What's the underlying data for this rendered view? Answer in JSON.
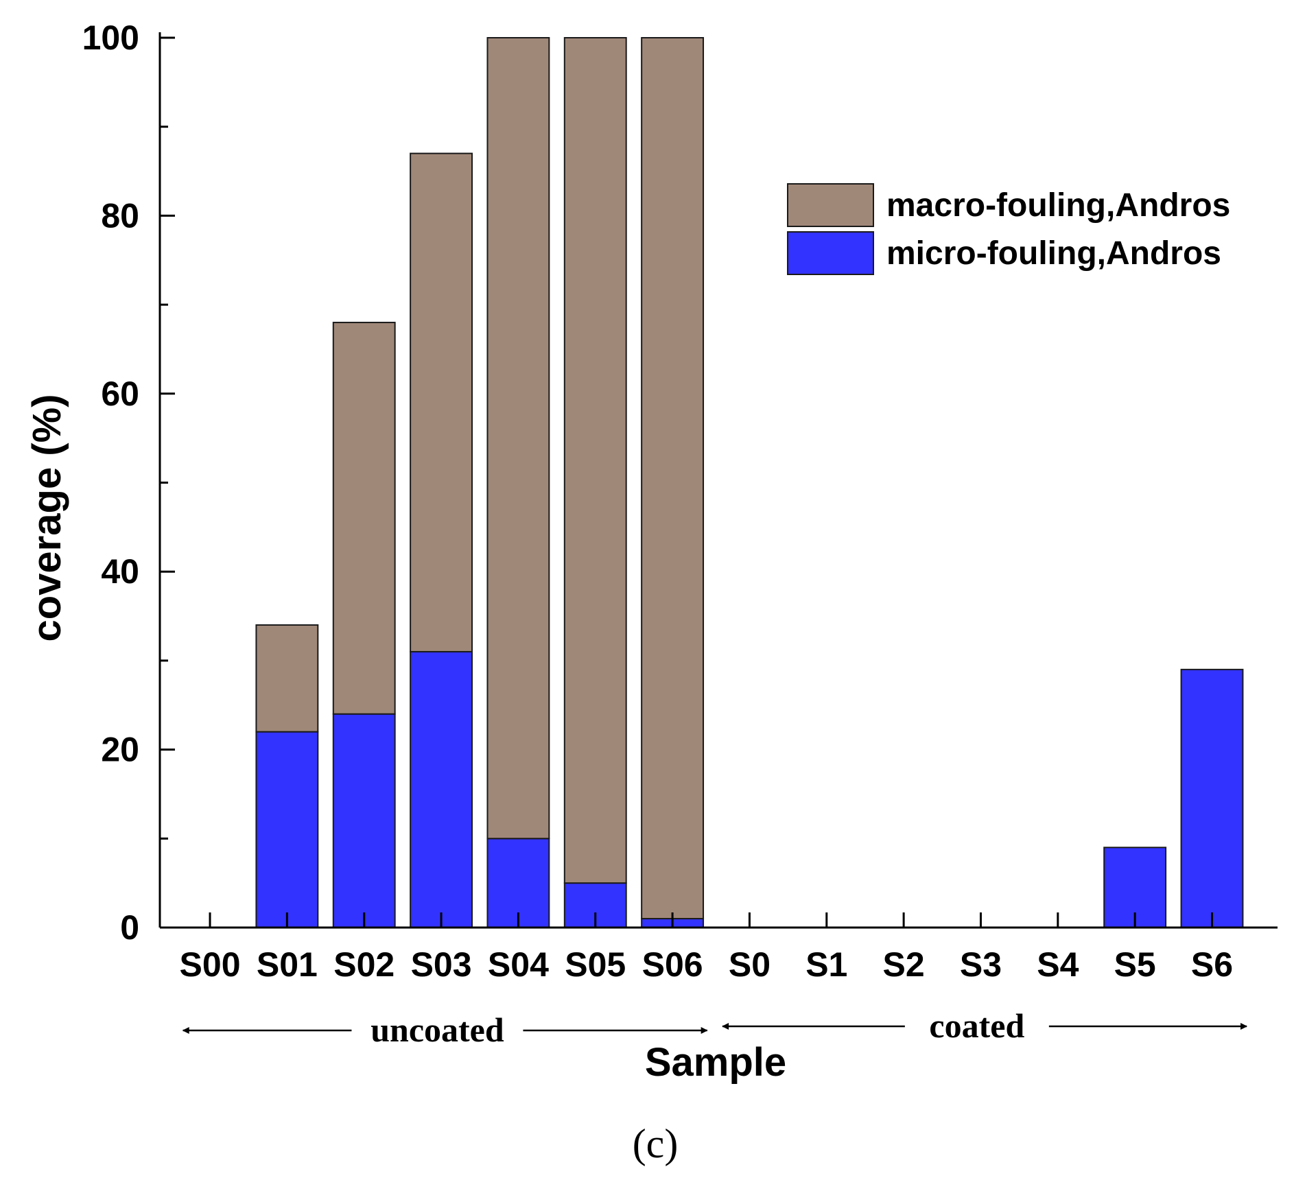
{
  "chart_data": {
    "type": "bar",
    "stacked": true,
    "xlabel": "Sample",
    "ylabel": "coverage (%)",
    "ylim": [
      0,
      100
    ],
    "yticks": [
      0,
      20,
      40,
      60,
      80,
      100
    ],
    "categories": [
      "S00",
      "S01",
      "S02",
      "S03",
      "S04",
      "S05",
      "S06",
      "S0",
      "S1",
      "S2",
      "S3",
      "S4",
      "S5",
      "S6"
    ],
    "series": [
      {
        "name": "micro-fouling,Andros",
        "color": "#3333ff",
        "values": [
          0,
          22,
          24,
          31,
          10,
          5,
          1,
          0,
          0,
          0,
          0,
          0,
          9,
          29
        ]
      },
      {
        "name": "macro-fouling,Andros",
        "color": "#a08878",
        "values": [
          0,
          12,
          44,
          56,
          90,
          95,
          99,
          0,
          0,
          0,
          0,
          0,
          0,
          0
        ]
      }
    ],
    "legend_position": "top-right",
    "groups": [
      {
        "label": "uncoated",
        "from": "S00",
        "to": "S06"
      },
      {
        "label": "coated",
        "from": "S0",
        "to": "S6"
      }
    ],
    "panel_label": "(c)"
  }
}
